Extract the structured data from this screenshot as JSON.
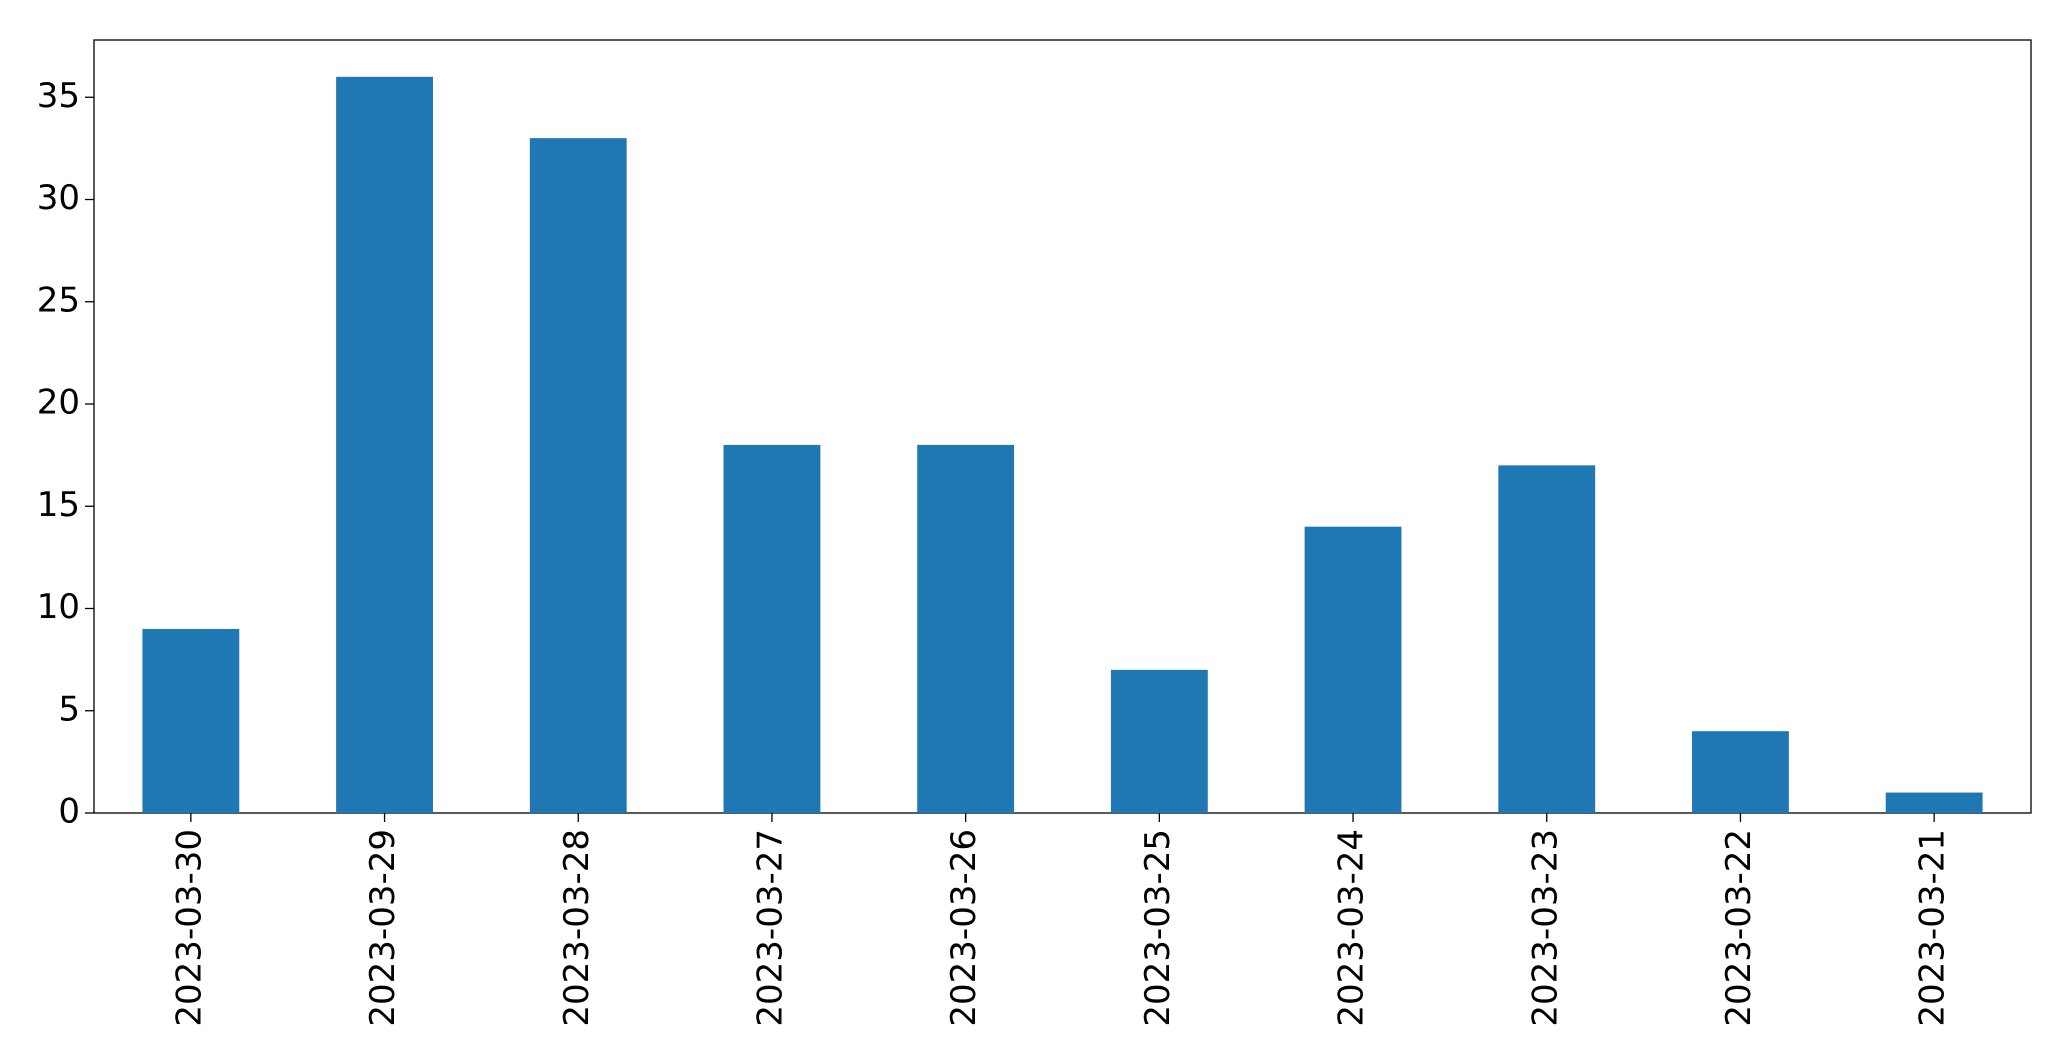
{
  "chart_data": {
    "type": "bar",
    "categories": [
      "2023-03-30",
      "2023-03-29",
      "2023-03-28",
      "2023-03-27",
      "2023-03-26",
      "2023-03-25",
      "2023-03-24",
      "2023-03-23",
      "2023-03-22",
      "2023-03-21"
    ],
    "values": [
      9,
      36,
      33,
      18,
      18,
      7,
      14,
      17,
      4,
      1
    ],
    "color": "#1f77b4",
    "ylim": [
      0,
      37.8
    ],
    "yticks": [
      0,
      5,
      10,
      15,
      20,
      25,
      30,
      35
    ],
    "grid": false
  }
}
